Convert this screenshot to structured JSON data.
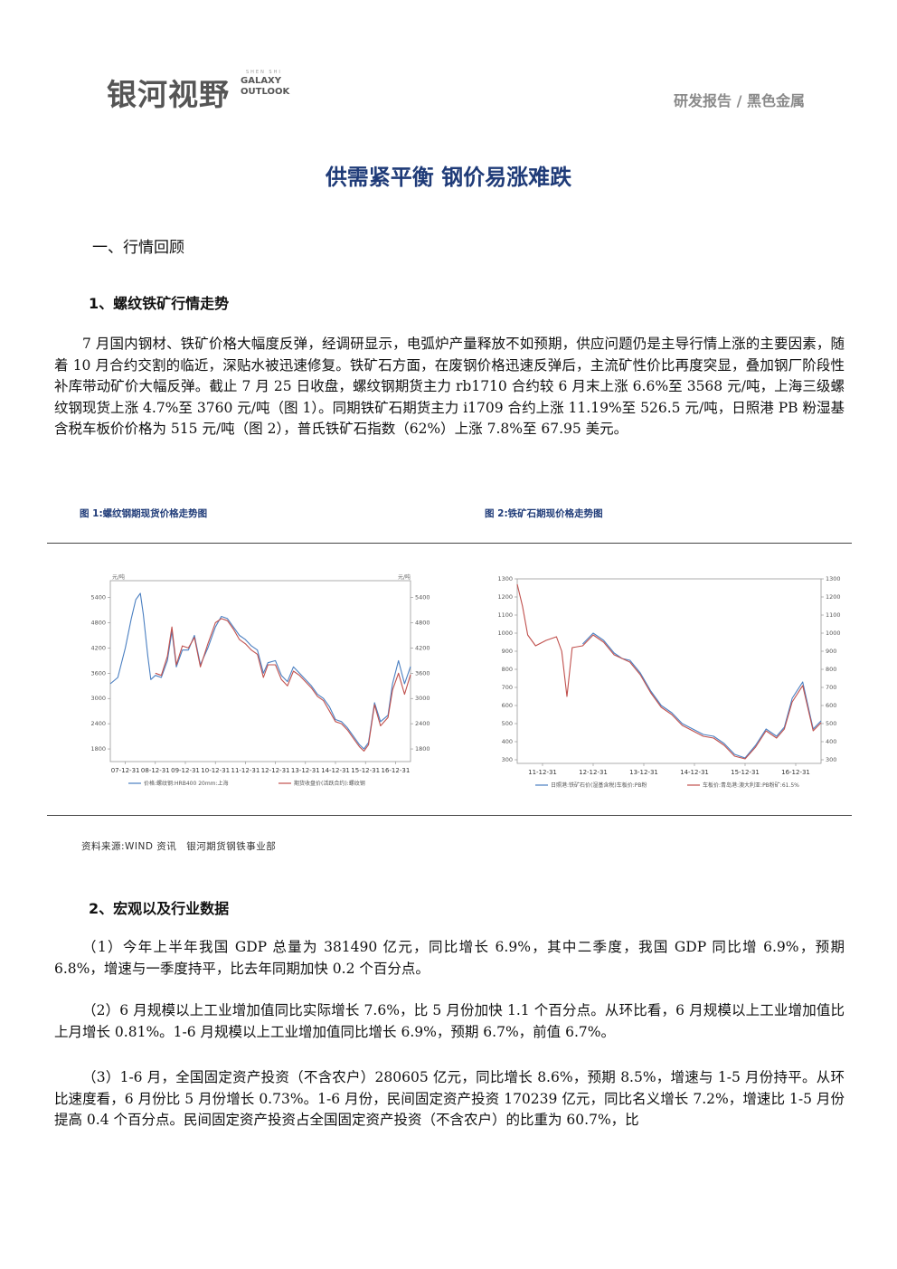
{
  "header": {
    "logo_cn": "银河视野",
    "logo_en_line1": "GALAXY",
    "logo_en_line2": "OUTLOOK",
    "logo_tiny": "SHEN SHI",
    "category": "研发报告 / 黑色金属"
  },
  "title": "供需紧平衡 钢价易涨难跌",
  "section1": {
    "heading": "一、行情回顾"
  },
  "subsection1": {
    "heading": "1、螺纹铁矿行情走势",
    "paragraph": "7 月国内钢材、铁矿价格大幅度反弹，经调研显示，电弧炉产量释放不如预期，供应问题仍是主导行情上涨的主要因素，随着 10 月合约交割的临近，深贴水被迅速修复。铁矿石方面，在废钢价格迅速反弹后，主流矿性价比再度突显，叠加钢厂阶段性补库带动矿价大幅反弹。截止 7 月 25 日收盘，螺纹钢期货主力 rb1710 合约较 6 月末上涨 6.6%至 3568 元/吨，上海三级螺纹钢现货上涨 4.7%至 3760 元/吨（图 1）。同期铁矿石期货主力 i1709 合约上涨 11.19%至 526.5 元/吨，日照港 PB 粉湿基含税车板价价格为 515 元/吨（图 2），普氏铁矿石指数（62%）上涨 7.8%至 67.95 美元。"
  },
  "figure1": {
    "caption": "图 1:螺纹钢期现货价格走势图"
  },
  "figure2": {
    "caption": "图 2:铁矿石期现价格走势图"
  },
  "source": "资料来源:WIND 资讯　银河期货钢铁事业部",
  "subsection2": {
    "heading": "2、宏观以及行业数据",
    "paragraphs": [
      "（1）今年上半年我国 GDP 总量为 381490 亿元，同比增长 6.9%，其中二季度，我国 GDP 同比增 6.9%，预期 6.8%，增速与一季度持平，比去年同期加快 0.2 个百分点。",
      "（2）6 月规模以上工业增加值同比实际增长 7.6%，比 5 月份加快 1.1 个百分点。从环比看，6 月规模以上工业增加值比上月增长 0.81%。1-6 月规模以上工业增加值同比增长 6.9%，预期 6.7%，前值 6.7%。",
      "（3）1-6 月，全国固定资产投资（不含农户）280605 亿元，同比增长 8.6%，预期 8.5%，增速与 1-5 月份持平。从环比速度看，6 月份比 5 月份增长 0.73%。1-6 月份，民间固定资产投资 170239 亿元，同比名义增长 7.2%，增速比 1-5 月份提高 0.4 个百分点。民间固定资产投资占全国固定资产投资（不含农户）的比重为 60.7%，比"
    ]
  },
  "chart_data": [
    {
      "type": "line",
      "ylabel_left": "元/吨",
      "ylabel_right": "元/吨",
      "yticks": [
        1800,
        2400,
        3000,
        3600,
        4200,
        4800,
        5400
      ],
      "ylim": [
        1500,
        5800
      ],
      "x_tick_labels": [
        "07-12-31",
        "08-12-31",
        "09-12-31",
        "10-12-31",
        "11-12-31",
        "12-12-31",
        "13-12-31",
        "14-12-31",
        "15-12-31",
        "16-12-31"
      ],
      "x": [
        2007.5,
        2007.75,
        2008.0,
        2008.2,
        2008.35,
        2008.5,
        2008.6,
        2008.75,
        2008.85,
        2009.0,
        2009.2,
        2009.4,
        2009.55,
        2009.7,
        2009.9,
        2010.1,
        2010.3,
        2010.5,
        2010.75,
        2011.0,
        2011.2,
        2011.4,
        2011.6,
        2011.8,
        2012.0,
        2012.2,
        2012.4,
        2012.6,
        2012.75,
        2013.0,
        2013.2,
        2013.4,
        2013.6,
        2013.8,
        2014.0,
        2014.2,
        2014.4,
        2014.6,
        2014.8,
        2015.0,
        2015.2,
        2015.4,
        2015.6,
        2015.8,
        2015.95,
        2016.1,
        2016.3,
        2016.5,
        2016.75,
        2016.9,
        2017.1,
        2017.3,
        2017.5
      ],
      "series": [
        {
          "name": "价格:螺纹钢:HRB400 20mm:上海",
          "color": "#4a7fc1",
          "values": [
            3350,
            3500,
            4200,
            4900,
            5350,
            5500,
            5000,
            4000,
            3450,
            3550,
            3500,
            3900,
            4600,
            3750,
            4150,
            4150,
            4500,
            3800,
            4200,
            4700,
            4950,
            4900,
            4700,
            4500,
            4400,
            4250,
            4150,
            3600,
            3850,
            3900,
            3550,
            3400,
            3750,
            3600,
            3450,
            3300,
            3100,
            3000,
            2800,
            2500,
            2450,
            2300,
            2100,
            1900,
            1800,
            1950,
            2900,
            2450,
            2600,
            3350,
            3900,
            3350,
            3760
          ]
        },
        {
          "name": "期货收盘价(活跃合约):螺纹钢",
          "color": "#c0504d",
          "values": [
            null,
            null,
            null,
            null,
            null,
            null,
            null,
            null,
            null,
            3600,
            3550,
            4000,
            4700,
            3800,
            4250,
            4200,
            4450,
            3750,
            4300,
            4800,
            4900,
            4850,
            4650,
            4400,
            4300,
            4150,
            4050,
            3500,
            3800,
            3800,
            3450,
            3300,
            3650,
            3550,
            3400,
            3250,
            3050,
            2950,
            2700,
            2450,
            2400,
            2250,
            2050,
            1850,
            1750,
            1900,
            2850,
            2350,
            2550,
            3200,
            3600,
            3100,
            3568
          ]
        }
      ],
      "legend_position": "bottom"
    },
    {
      "type": "line",
      "yticks": [
        300,
        400,
        500,
        600,
        700,
        800,
        900,
        1000,
        1100,
        1200,
        1300
      ],
      "ylim": [
        280,
        1300
      ],
      "x_tick_labels": [
        "11-12-31",
        "12-12-31",
        "13-12-31",
        "14-12-31",
        "15-12-31",
        "16-12-31"
      ],
      "x": [
        2011.75,
        2011.85,
        2011.95,
        2012.1,
        2012.3,
        2012.5,
        2012.6,
        2012.7,
        2012.8,
        2013.0,
        2013.2,
        2013.4,
        2013.6,
        2013.75,
        2013.9,
        2014.1,
        2014.3,
        2014.5,
        2014.7,
        2014.9,
        2015.1,
        2015.3,
        2015.5,
        2015.7,
        2015.9,
        2016.1,
        2016.3,
        2016.5,
        2016.7,
        2016.85,
        2017.0,
        2017.2,
        2017.4,
        2017.55
      ],
      "series": [
        {
          "name": "日照港:铁矿石价(湿基含税)车板价:PB粉",
          "color": "#4a7fc1",
          "values": [
            null,
            null,
            null,
            null,
            null,
            null,
            null,
            null,
            null,
            940,
            1000,
            960,
            890,
            860,
            850,
            780,
            680,
            600,
            560,
            500,
            470,
            440,
            430,
            390,
            330,
            310,
            380,
            470,
            430,
            480,
            640,
            730,
            470,
            515
          ]
        },
        {
          "name": "车板价:青岛港:澳大利亚:PB粉矿:61.5%",
          "color": "#c0504d",
          "values": [
            1270,
            1150,
            990,
            930,
            960,
            980,
            900,
            650,
            920,
            930,
            990,
            950,
            880,
            860,
            840,
            770,
            670,
            590,
            550,
            490,
            460,
            430,
            420,
            380,
            320,
            305,
            370,
            460,
            420,
            470,
            620,
            710,
            460,
            505
          ]
        }
      ],
      "legend_position": "bottom"
    }
  ]
}
